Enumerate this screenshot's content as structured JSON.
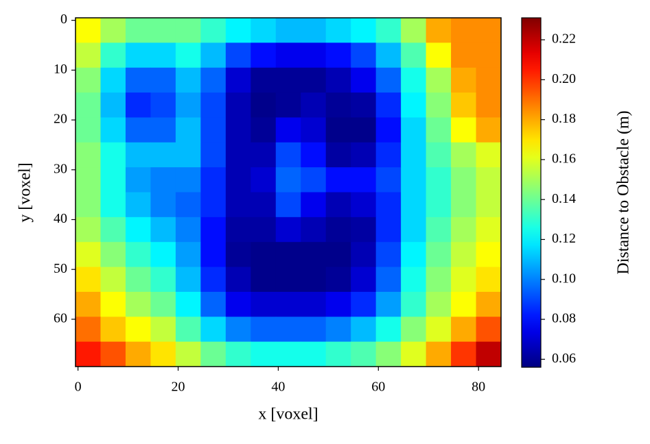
{
  "chart_data": {
    "type": "heatmap",
    "x_label": "x [voxel]",
    "y_label": "y [voxel]",
    "colorbar_label": "Distance to Obstacle (m)",
    "x": [
      2,
      7,
      12,
      17,
      22,
      27,
      32,
      37,
      42,
      47,
      52,
      57,
      62,
      67,
      72,
      77,
      82
    ],
    "y": [
      2,
      7,
      12,
      17,
      22,
      27,
      32,
      37,
      42,
      47,
      52,
      57,
      62,
      67
    ],
    "values": [
      [
        0.165,
        0.15,
        0.14,
        0.14,
        0.14,
        0.13,
        0.12,
        0.115,
        0.11,
        0.11,
        0.115,
        0.12,
        0.13,
        0.15,
        0.18,
        0.185,
        0.185
      ],
      [
        0.155,
        0.13,
        0.115,
        0.115,
        0.125,
        0.11,
        0.09,
        0.08,
        0.075,
        0.075,
        0.08,
        0.09,
        0.11,
        0.135,
        0.165,
        0.185,
        0.185
      ],
      [
        0.145,
        0.115,
        0.095,
        0.095,
        0.11,
        0.095,
        0.07,
        0.06,
        0.06,
        0.06,
        0.065,
        0.075,
        0.095,
        0.125,
        0.15,
        0.18,
        0.185
      ],
      [
        0.14,
        0.11,
        0.085,
        0.09,
        0.105,
        0.09,
        0.065,
        0.058,
        0.06,
        0.065,
        0.06,
        0.062,
        0.085,
        0.12,
        0.145,
        0.175,
        0.185
      ],
      [
        0.14,
        0.115,
        0.095,
        0.095,
        0.11,
        0.09,
        0.065,
        0.06,
        0.075,
        0.07,
        0.058,
        0.058,
        0.08,
        0.115,
        0.14,
        0.165,
        0.18
      ],
      [
        0.145,
        0.125,
        0.11,
        0.11,
        0.11,
        0.09,
        0.065,
        0.065,
        0.09,
        0.08,
        0.062,
        0.065,
        0.085,
        0.115,
        0.135,
        0.15,
        0.16
      ],
      [
        0.145,
        0.125,
        0.105,
        0.1,
        0.1,
        0.085,
        0.065,
        0.07,
        0.095,
        0.09,
        0.08,
        0.08,
        0.09,
        0.115,
        0.13,
        0.145,
        0.155
      ],
      [
        0.145,
        0.125,
        0.11,
        0.1,
        0.095,
        0.085,
        0.065,
        0.065,
        0.09,
        0.075,
        0.065,
        0.07,
        0.085,
        0.115,
        0.13,
        0.145,
        0.155
      ],
      [
        0.15,
        0.135,
        0.12,
        0.11,
        0.1,
        0.08,
        0.062,
        0.062,
        0.07,
        0.065,
        0.06,
        0.062,
        0.085,
        0.115,
        0.135,
        0.15,
        0.16
      ],
      [
        0.16,
        0.145,
        0.13,
        0.12,
        0.105,
        0.08,
        0.06,
        0.058,
        0.058,
        0.058,
        0.058,
        0.065,
        0.09,
        0.12,
        0.14,
        0.155,
        0.165
      ],
      [
        0.17,
        0.155,
        0.14,
        0.13,
        0.11,
        0.085,
        0.065,
        0.058,
        0.058,
        0.058,
        0.06,
        0.07,
        0.095,
        0.125,
        0.145,
        0.16,
        0.17
      ],
      [
        0.18,
        0.165,
        0.15,
        0.14,
        0.12,
        0.095,
        0.075,
        0.07,
        0.07,
        0.07,
        0.075,
        0.085,
        0.105,
        0.13,
        0.15,
        0.165,
        0.18
      ],
      [
        0.19,
        0.175,
        0.165,
        0.155,
        0.135,
        0.115,
        0.1,
        0.095,
        0.095,
        0.095,
        0.1,
        0.11,
        0.125,
        0.145,
        0.16,
        0.18,
        0.195
      ],
      [
        0.205,
        0.195,
        0.18,
        0.17,
        0.155,
        0.14,
        0.13,
        0.125,
        0.125,
        0.125,
        0.13,
        0.135,
        0.145,
        0.16,
        0.18,
        0.2,
        0.22
      ]
    ],
    "xlim": [
      -0.5,
      84.5
    ],
    "ylim": [
      -0.5,
      69.5
    ],
    "y_inverted": true,
    "xticks": [
      0,
      20,
      40,
      60,
      80
    ],
    "yticks": [
      0,
      10,
      20,
      30,
      40,
      50,
      60
    ],
    "colormap": "jet",
    "clim": [
      0.056,
      0.231
    ],
    "cticks": [
      0.06,
      0.08,
      {
        "value": 0.1,
        "label": "0.10"
      },
      0.12,
      0.14,
      0.16,
      0.18,
      {
        "value": 0.2,
        "label": "0.20"
      },
      0.22
    ]
  }
}
